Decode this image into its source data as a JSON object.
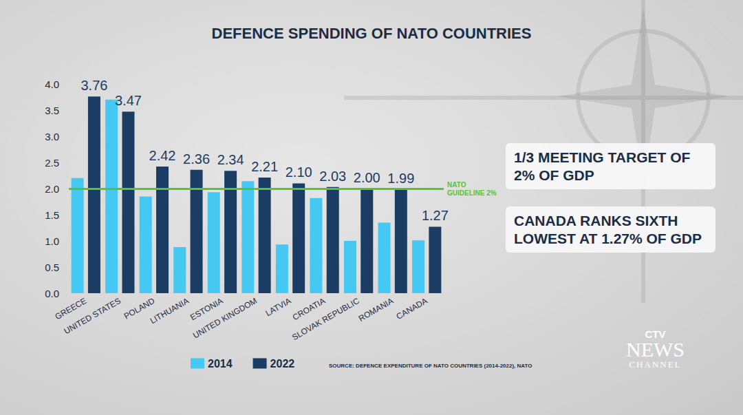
{
  "chart_data": {
    "type": "bar",
    "title": "DEFENCE SPENDING OF NATO COUNTRIES",
    "categories": [
      "GREECE",
      "UNITED STATES",
      "POLAND",
      "LITHUANIA",
      "ESTONIA",
      "UNITED KINGDOM",
      "LATVIA",
      "CROATIA",
      "SLOVAK REPUBLIC",
      "ROMANIA",
      "CANADA"
    ],
    "series": [
      {
        "name": "2014",
        "color": "#45c8f2",
        "data_labels": false,
        "values": [
          2.2,
          3.7,
          1.85,
          0.88,
          1.93,
          2.14,
          0.93,
          1.82,
          1.0,
          1.35,
          1.01
        ]
      },
      {
        "name": "2022",
        "color": "#1b3d63",
        "data_labels": true,
        "values": [
          3.76,
          3.47,
          2.42,
          2.36,
          2.34,
          2.21,
          2.1,
          2.03,
          2.0,
          1.99,
          1.27
        ],
        "value_labels": [
          "3.76",
          "3.47",
          "2.42",
          "2.36",
          "2.34",
          "2.21",
          "2.10",
          "2.03",
          "2.00",
          "1.99",
          "1.27"
        ]
      }
    ],
    "ylim": [
      0,
      4
    ],
    "yticks": [
      {
        "value": 0,
        "label": "0.0"
      },
      0.5,
      {
        "value": 1,
        "label": "1.0"
      },
      1.5,
      {
        "value": 2,
        "label": "2.0"
      },
      2.5,
      {
        "value": 3,
        "label": "3.0"
      },
      3.5,
      {
        "value": 4,
        "label": "4.0"
      }
    ],
    "grid": false,
    "legend": "bottom",
    "reference_line": {
      "value": 2,
      "label": "NATO GUIDELINE 2%",
      "color": "#55c43a"
    },
    "annotations": [
      "1/3 MEETING TARGET OF 2% OF GDP",
      "CANADA RANKS SIXTH LOWEST AT 1.27% OF GDP"
    ],
    "source": "SOURCE: DEFENCE EXPENDITURE OF NATO COUNTRIES (2014-2022), NATO",
    "logo": [
      "CTV",
      "NEWS",
      "CHANNEL"
    ]
  }
}
